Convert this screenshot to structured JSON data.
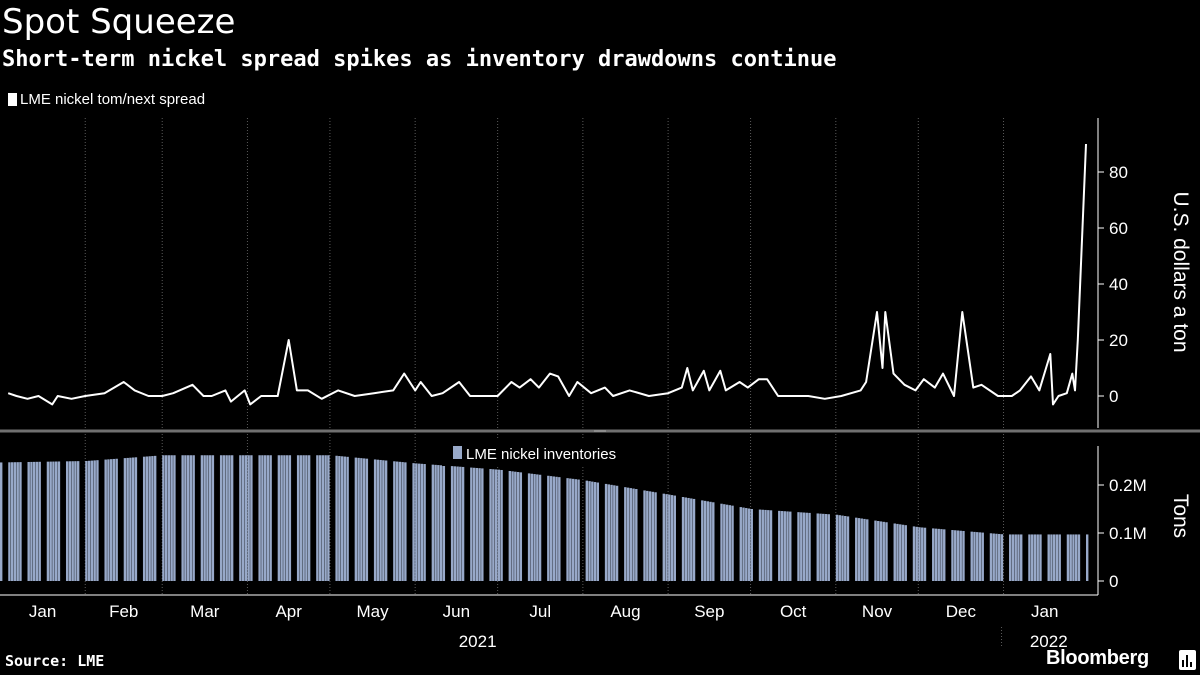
{
  "header": {
    "title": "Spot Squeeze",
    "subtitle": "Short-term nickel spread spikes as inventory drawdowns continue"
  },
  "footer": {
    "source": "Source: LME",
    "brand": "Bloomberg"
  },
  "colors": {
    "background": "#000000",
    "spread_line": "#ffffff",
    "inventory_bars": "#98a9c9",
    "grid": "#5a5a5a",
    "divider": "#707070"
  },
  "icons": {
    "brand_badge": "bloomberg-bars-icon"
  },
  "chart_data": [
    {
      "type": "line",
      "title": "Short-term nickel spread spikes as inventory drawdowns continue",
      "legend": "LME nickel tom/next spread",
      "legend_position": "top-left",
      "ylabel": "U.S. dollars a ton",
      "yticks": [
        0,
        20,
        40,
        60,
        80
      ],
      "ylim": [
        -12,
        99
      ],
      "x_axis": {
        "type": "date",
        "start": "2021-01-01",
        "end": "2022-01-31",
        "month_labels": [
          "Jan",
          "Feb",
          "Mar",
          "Apr",
          "May",
          "Jun",
          "Jul",
          "Aug",
          "Sep",
          "Oct",
          "Nov",
          "Dec",
          "Jan"
        ],
        "year_labels": [
          "2021",
          "2022"
        ]
      },
      "grid": "vertical-dotted",
      "series": [
        {
          "name": "LME nickel tom/next spread",
          "points": [
            [
              "2021-01-04",
              1
            ],
            [
              "2021-01-07",
              0
            ],
            [
              "2021-01-11",
              -1
            ],
            [
              "2021-01-15",
              0
            ],
            [
              "2021-01-20",
              -3
            ],
            [
              "2021-01-22",
              0
            ],
            [
              "2021-01-27",
              -1
            ],
            [
              "2021-02-01",
              0
            ],
            [
              "2021-02-08",
              1
            ],
            [
              "2021-02-15",
              5
            ],
            [
              "2021-02-19",
              2
            ],
            [
              "2021-02-24",
              0
            ],
            [
              "2021-03-01",
              0
            ],
            [
              "2021-03-05",
              1
            ],
            [
              "2021-03-12",
              4
            ],
            [
              "2021-03-16",
              0
            ],
            [
              "2021-03-19",
              0
            ],
            [
              "2021-03-24",
              2
            ],
            [
              "2021-03-26",
              -2
            ],
            [
              "2021-03-31",
              2
            ],
            [
              "2021-04-02",
              -3
            ],
            [
              "2021-04-06",
              0
            ],
            [
              "2021-04-12",
              0
            ],
            [
              "2021-04-16",
              20
            ],
            [
              "2021-04-19",
              2
            ],
            [
              "2021-04-23",
              2
            ],
            [
              "2021-04-28",
              -1
            ],
            [
              "2021-05-04",
              2
            ],
            [
              "2021-05-10",
              0
            ],
            [
              "2021-05-17",
              1
            ],
            [
              "2021-05-24",
              2
            ],
            [
              "2021-05-28",
              8
            ],
            [
              "2021-06-01",
              2
            ],
            [
              "2021-06-03",
              5
            ],
            [
              "2021-06-07",
              0
            ],
            [
              "2021-06-11",
              1
            ],
            [
              "2021-06-17",
              5
            ],
            [
              "2021-06-21",
              0
            ],
            [
              "2021-06-25",
              0
            ],
            [
              "2021-07-01",
              0
            ],
            [
              "2021-07-06",
              5
            ],
            [
              "2021-07-09",
              3
            ],
            [
              "2021-07-13",
              6
            ],
            [
              "2021-07-16",
              3
            ],
            [
              "2021-07-20",
              8
            ],
            [
              "2021-07-23",
              7
            ],
            [
              "2021-07-27",
              0
            ],
            [
              "2021-07-30",
              5
            ],
            [
              "2021-08-04",
              1
            ],
            [
              "2021-08-09",
              3
            ],
            [
              "2021-08-12",
              0
            ],
            [
              "2021-08-18",
              2
            ],
            [
              "2021-08-25",
              0
            ],
            [
              "2021-09-01",
              1
            ],
            [
              "2021-09-06",
              3
            ],
            [
              "2021-09-08",
              10
            ],
            [
              "2021-09-10",
              2
            ],
            [
              "2021-09-14",
              9
            ],
            [
              "2021-09-16",
              2
            ],
            [
              "2021-09-20",
              9
            ],
            [
              "2021-09-22",
              2
            ],
            [
              "2021-09-27",
              5
            ],
            [
              "2021-09-30",
              3
            ],
            [
              "2021-10-04",
              6
            ],
            [
              "2021-10-07",
              6
            ],
            [
              "2021-10-11",
              0
            ],
            [
              "2021-10-18",
              0
            ],
            [
              "2021-10-22",
              0
            ],
            [
              "2021-10-28",
              -1
            ],
            [
              "2021-11-03",
              0
            ],
            [
              "2021-11-10",
              2
            ],
            [
              "2021-11-12",
              5
            ],
            [
              "2021-11-16",
              30
            ],
            [
              "2021-11-18",
              10
            ],
            [
              "2021-11-19",
              30
            ],
            [
              "2021-11-22",
              8
            ],
            [
              "2021-11-26",
              4
            ],
            [
              "2021-11-30",
              2
            ],
            [
              "2021-12-03",
              6
            ],
            [
              "2021-12-07",
              3
            ],
            [
              "2021-12-10",
              8
            ],
            [
              "2021-12-14",
              0
            ],
            [
              "2021-12-17",
              30
            ],
            [
              "2021-12-21",
              3
            ],
            [
              "2021-12-24",
              4
            ],
            [
              "2021-12-30",
              0
            ],
            [
              "2022-01-04",
              0
            ],
            [
              "2022-01-07",
              2
            ],
            [
              "2022-01-11",
              7
            ],
            [
              "2022-01-14",
              2
            ],
            [
              "2022-01-18",
              15
            ],
            [
              "2022-01-19",
              -3
            ],
            [
              "2022-01-21",
              0
            ],
            [
              "2022-01-24",
              1
            ],
            [
              "2022-01-26",
              8
            ],
            [
              "2022-01-27",
              2
            ],
            [
              "2022-01-28",
              20
            ],
            [
              "2022-01-31",
              90
            ]
          ]
        }
      ]
    },
    {
      "type": "bar",
      "legend": "LME nickel inventories",
      "legend_position": "top-center",
      "ylabel": "Tons",
      "yticks": [
        0,
        100000,
        200000
      ],
      "ytick_labels": [
        "0",
        "0.1M",
        "0.2M"
      ],
      "ylim": [
        0,
        280000
      ],
      "series": [
        {
          "name": "LME nickel inventories",
          "monthly_levels": [
            [
              "2021-01",
              247000
            ],
            [
              "2021-02",
              250000
            ],
            [
              "2021-03",
              262000
            ],
            [
              "2021-04",
              262000
            ],
            [
              "2021-05",
              262000
            ],
            [
              "2021-06",
              245000
            ],
            [
              "2021-07",
              232000
            ],
            [
              "2021-08",
              210000
            ],
            [
              "2021-09",
              180000
            ],
            [
              "2021-10",
              150000
            ],
            [
              "2021-11",
              138000
            ],
            [
              "2021-12",
              112000
            ],
            [
              "2022-01",
              97000
            ]
          ]
        }
      ]
    }
  ]
}
